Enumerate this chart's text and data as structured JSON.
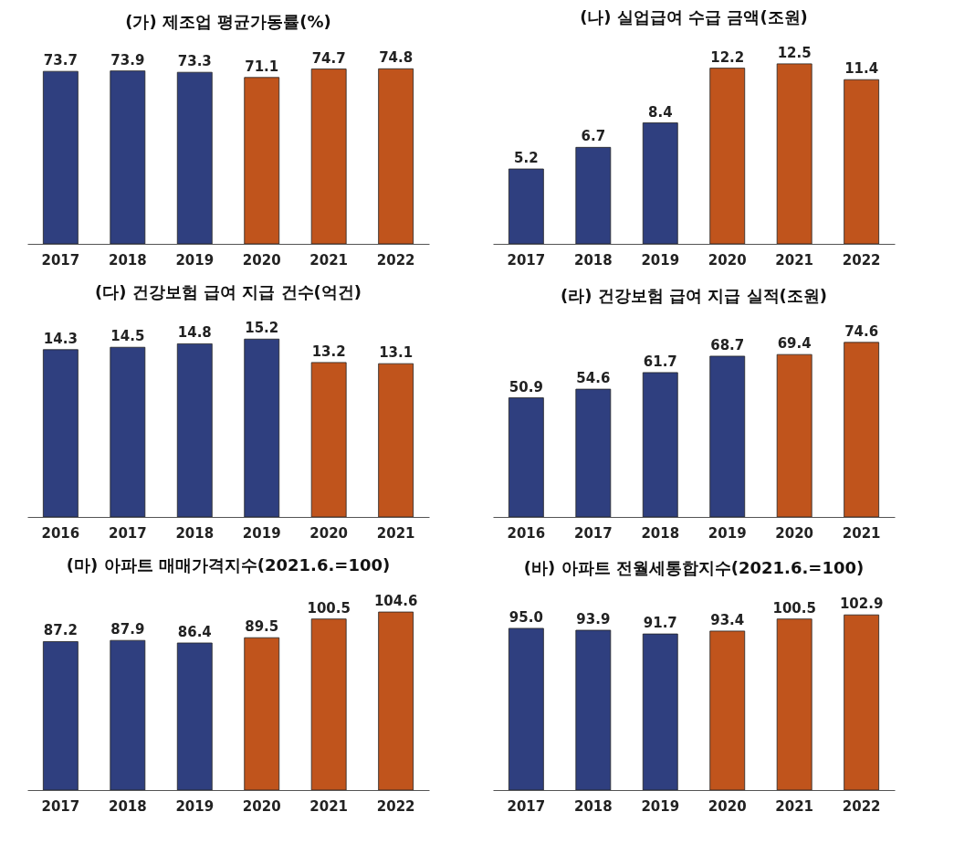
{
  "chart_data": [
    {
      "type": "bar",
      "title": "(가) 제조업 평균가동률(%)",
      "categories": [
        "2017",
        "2018",
        "2019",
        "2020",
        "2021",
        "2022"
      ],
      "values": [
        73.7,
        73.9,
        73.3,
        71.1,
        74.7,
        74.8
      ],
      "value_labels": [
        "73.7",
        "73.9",
        "73.3",
        "71.1",
        "74.7",
        "74.8"
      ],
      "colors": [
        "#2f3f7f",
        "#2f3f7f",
        "#2f3f7f",
        "#c0541c",
        "#c0541c",
        "#c0541c"
      ],
      "tick_labels": "x"
    },
    {
      "type": "bar",
      "title": "(나) 실업급여 수급 금액(조원)",
      "categories": [
        "2017",
        "2018",
        "2019",
        "2020",
        "2021",
        "2022"
      ],
      "values": [
        5.2,
        6.7,
        8.4,
        12.2,
        12.5,
        11.4
      ],
      "value_labels": [
        "5.2",
        "6.7",
        "8.4",
        "12.2",
        "12.5",
        "11.4"
      ],
      "colors": [
        "#2f3f7f",
        "#2f3f7f",
        "#2f3f7f",
        "#c0541c",
        "#c0541c",
        "#c0541c"
      ],
      "tick_labels": "x"
    },
    {
      "type": "bar",
      "title": "(다) 건강보험 급여 지급 건수(억건)",
      "categories": [
        "2016",
        "2017",
        "2018",
        "2019",
        "2020",
        "2021"
      ],
      "values": [
        14.3,
        14.5,
        14.8,
        15.2,
        13.2,
        13.1
      ],
      "value_labels": [
        "14.3",
        "14.5",
        "14.8",
        "15.2",
        "13.2",
        "13.1"
      ],
      "colors": [
        "#2f3f7f",
        "#2f3f7f",
        "#2f3f7f",
        "#2f3f7f",
        "#c0541c",
        "#c0541c"
      ],
      "tick_labels": "x"
    },
    {
      "type": "bar",
      "title": "(라) 건강보험 급여 지급 실적(조원)",
      "categories": [
        "2016",
        "2017",
        "2018",
        "2019",
        "2020",
        "2021"
      ],
      "values": [
        50.9,
        54.6,
        61.7,
        68.7,
        69.4,
        74.6
      ],
      "value_labels": [
        "50.9",
        "54.6",
        "61.7",
        "68.7",
        "69.4",
        "74.6"
      ],
      "colors": [
        "#2f3f7f",
        "#2f3f7f",
        "#2f3f7f",
        "#2f3f7f",
        "#c0541c",
        "#c0541c"
      ],
      "tick_labels": "x"
    },
    {
      "type": "bar",
      "title": "(마) 아파트 매매가격지수(2021.6.=100)",
      "categories": [
        "2017",
        "2018",
        "2019",
        "2020",
        "2021",
        "2022"
      ],
      "values": [
        87.2,
        87.9,
        86.4,
        89.5,
        100.5,
        104.6
      ],
      "value_labels": [
        "87.2",
        "87.9",
        "86.4",
        "89.5",
        "100.5",
        "104.6"
      ],
      "colors": [
        "#2f3f7f",
        "#2f3f7f",
        "#2f3f7f",
        "#c0541c",
        "#c0541c",
        "#c0541c"
      ],
      "tick_labels": "x"
    },
    {
      "type": "bar",
      "title": "(바) 아파트 전월세통합지수(2021.6.=100)",
      "categories": [
        "2017",
        "2018",
        "2019",
        "2020",
        "2021",
        "2022"
      ],
      "values": [
        95.0,
        93.9,
        91.7,
        93.4,
        100.5,
        102.9
      ],
      "value_labels": [
        "95.0",
        "93.9",
        "91.7",
        "93.4",
        "100.5",
        "102.9"
      ],
      "colors": [
        "#2f3f7f",
        "#2f3f7f",
        "#2f3f7f",
        "#c0541c",
        "#c0541c",
        "#c0541c"
      ],
      "tick_labels": "x"
    }
  ]
}
